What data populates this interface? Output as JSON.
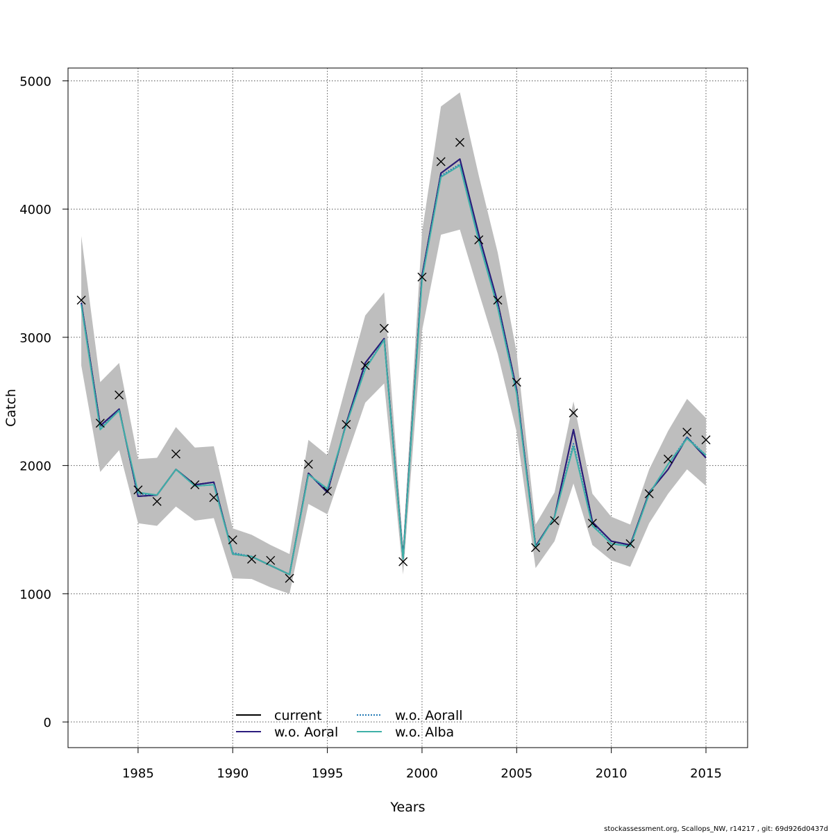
{
  "chart_data": {
    "type": "line",
    "xlabel": "Years",
    "ylabel": "Catch",
    "xlim": [
      1981.3,
      2017.2
    ],
    "ylim": [
      -200,
      5100
    ],
    "x_ticks": [
      1985,
      1990,
      1995,
      2000,
      2005,
      2010,
      2015
    ],
    "y_ticks": [
      0,
      1000,
      2000,
      3000,
      4000,
      5000
    ],
    "grid": true,
    "legend_position": "bottom-center",
    "x": [
      1982,
      1983,
      1984,
      1985,
      1986,
      1987,
      1988,
      1989,
      1990,
      1991,
      1992,
      1993,
      1994,
      1995,
      1996,
      1997,
      1998,
      1999,
      2000,
      2001,
      2002,
      2003,
      2004,
      2005,
      2006,
      2007,
      2008,
      2009,
      2010,
      2011,
      2012,
      2013,
      2014,
      2015
    ],
    "confidence_band": {
      "color": "#bebebe",
      "lower": [
        2780,
        1950,
        2120,
        1550,
        1530,
        1680,
        1570,
        1590,
        1120,
        1115,
        1050,
        1000,
        1700,
        1620,
        2060,
        2490,
        2640,
        1150,
        3050,
        3800,
        3840,
        3350,
        2870,
        2260,
        1200,
        1410,
        1860,
        1380,
        1260,
        1210,
        1550,
        1780,
        1970,
        1840
      ],
      "upper": [
        3790,
        2650,
        2800,
        2050,
        2060,
        2300,
        2140,
        2150,
        1510,
        1460,
        1380,
        1310,
        2200,
        2080,
        2630,
        3170,
        3350,
        1380,
        3820,
        4800,
        4910,
        4260,
        3660,
        2880,
        1540,
        1790,
        2500,
        1780,
        1600,
        1540,
        1970,
        2270,
        2520,
        2370
      ]
    },
    "series": [
      {
        "name": "current",
        "color": "#000000",
        "dash": "solid",
        "values": [
          3270,
          2310,
          2440,
          1760,
          1770,
          1970,
          1850,
          1870,
          1310,
          1290,
          1220,
          1150,
          1940,
          1790,
          2330,
          2800,
          2990,
          1280,
          3480,
          4280,
          4390,
          3800,
          3270,
          2590,
          1370,
          1600,
          2280,
          1560,
          1410,
          1380,
          1790,
          1970,
          2220,
          2060
        ]
      },
      {
        "name": "w.o. Aoral",
        "color": "#2b1c7e",
        "dash": "solid",
        "values": [
          3270,
          2310,
          2440,
          1760,
          1770,
          1970,
          1850,
          1870,
          1310,
          1290,
          1220,
          1150,
          1940,
          1790,
          2330,
          2800,
          2990,
          1280,
          3480,
          4280,
          4390,
          3800,
          3270,
          2590,
          1370,
          1600,
          2280,
          1560,
          1410,
          1380,
          1790,
          1970,
          2220,
          2060
        ]
      },
      {
        "name": "w.o. Aorall",
        "color": "#1f78b4",
        "dash": "dotted",
        "values": [
          3260,
          2290,
          2430,
          1780,
          1770,
          1970,
          1840,
          1850,
          1320,
          1290,
          1220,
          1150,
          1930,
          1810,
          2320,
          2760,
          2980,
          1270,
          3460,
          4260,
          4350,
          3760,
          3240,
          2570,
          1360,
          1600,
          2170,
          1540,
          1390,
          1370,
          1780,
          2010,
          2220,
          2080
        ]
      },
      {
        "name": "w.o. Alba",
        "color": "#3fb0a8",
        "dash": "solid",
        "values": [
          3250,
          2280,
          2430,
          1790,
          1770,
          1970,
          1840,
          1850,
          1310,
          1290,
          1220,
          1150,
          1930,
          1820,
          2320,
          2750,
          2980,
          1270,
          3450,
          4250,
          4340,
          3750,
          3230,
          2560,
          1360,
          1600,
          2150,
          1530,
          1390,
          1370,
          1780,
          2010,
          2210,
          2080
        ]
      }
    ],
    "observations": {
      "marker": "x",
      "values": [
        3290,
        2330,
        2550,
        1810,
        1720,
        2090,
        1850,
        1750,
        1420,
        1270,
        1260,
        1120,
        2010,
        1800,
        2320,
        2780,
        3070,
        1250,
        3470,
        4370,
        4520,
        3760,
        3290,
        2650,
        1360,
        1570,
        2410,
        1550,
        1370,
        1390,
        1780,
        2050,
        2260,
        2200
      ]
    }
  },
  "footer": {
    "text": "stockassessment.org, Scallops_NW, r14217 , git: 69d926d0437d"
  }
}
